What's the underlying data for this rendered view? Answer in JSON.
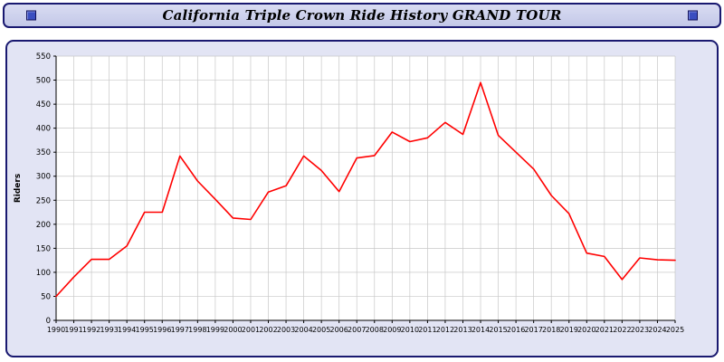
{
  "header": {
    "title": "California Triple Crown Ride History GRAND TOUR"
  },
  "colors": {
    "line": "#ff0000",
    "panel_bg": "#e2e4f4",
    "header_bg": "#ccd1ec",
    "border": "#191970",
    "grid": "#c8c8c8",
    "axis": "#000000",
    "plot_bg": "#ffffff"
  },
  "chart_data": {
    "type": "line",
    "title": "California Triple Crown Ride History GRAND TOUR",
    "xlabel": "",
    "ylabel": "Riders",
    "x": [
      1990,
      1991,
      1992,
      1993,
      1994,
      1995,
      1996,
      1997,
      1998,
      1999,
      2000,
      2001,
      2002,
      2003,
      2004,
      2005,
      2006,
      2007,
      2008,
      2009,
      2010,
      2011,
      2012,
      2013,
      2014,
      2015,
      2016,
      2017,
      2018,
      2019,
      2020,
      2021,
      2022,
      2023,
      2024,
      2025
    ],
    "values": [
      50,
      90,
      127,
      127,
      155,
      225,
      225,
      342,
      290,
      252,
      213,
      210,
      267,
      280,
      342,
      312,
      268,
      338,
      343,
      392,
      372,
      380,
      412,
      387,
      495,
      385,
      350,
      315,
      260,
      222,
      140,
      133,
      85,
      130,
      126,
      125
    ],
    "ylim": [
      0,
      550
    ],
    "ytick_step": 50,
    "y_ticks": [
      0,
      50,
      100,
      150,
      200,
      250,
      300,
      350,
      400,
      450,
      500,
      550
    ],
    "grid": true,
    "legend_position": "none",
    "series_name": "Riders",
    "line_color": "#ff0000"
  }
}
